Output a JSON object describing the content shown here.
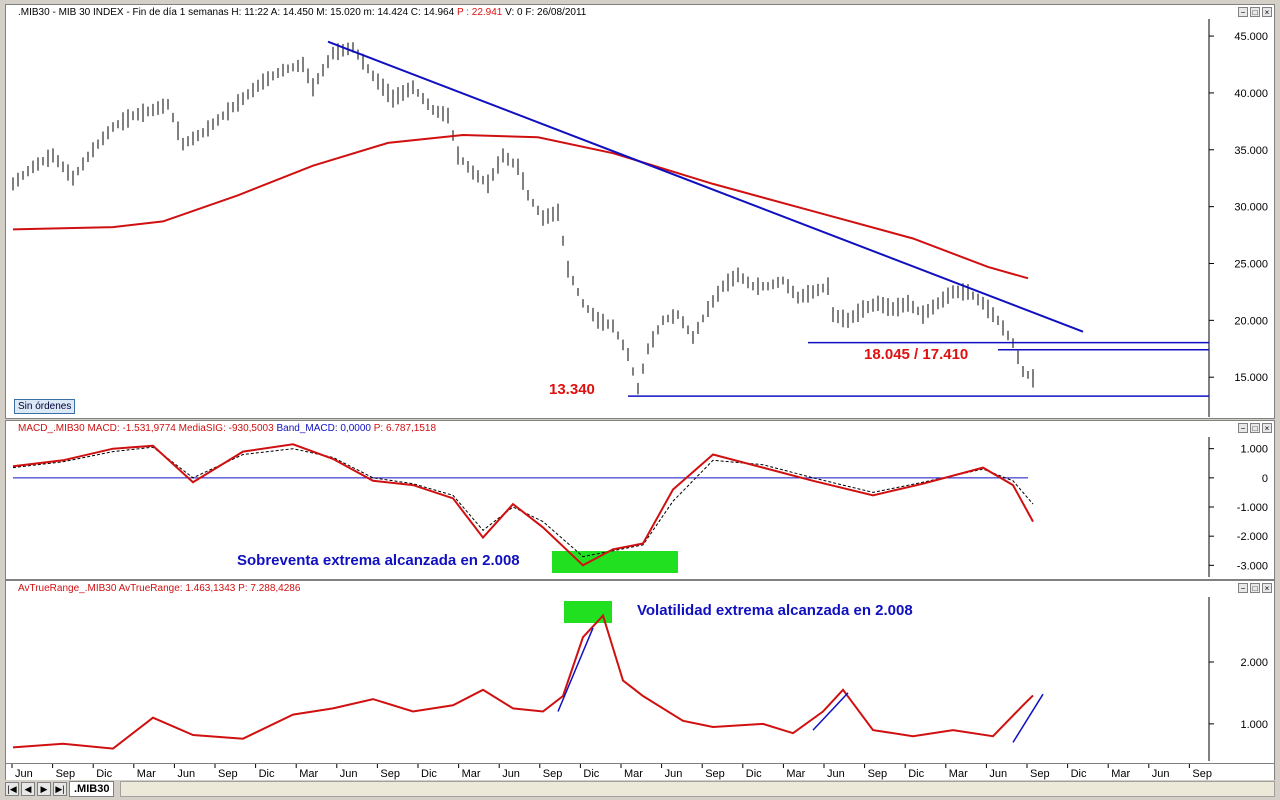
{
  "panes": {
    "price": {
      "title": ".MIB30 - MIB 30 INDEX - Fin de día 1 semanas  H: 11:22  A: 14.450  M: 15.020  m: 14.424  C: 14.964",
      "title_p": "P : 22.941",
      "title_rest": "V: 0  F: 26/08/2011",
      "orders_button": "Sin órdenes"
    },
    "macd": {
      "title": "MACD_.MIB30  MACD: -1.531,9774  MediaSIG: -930,5003",
      "title_band": "Band_MACD: 0,0000",
      "title_p": "P: 6.787,1518"
    },
    "atr": {
      "title": "AvTrueRange_.MIB30  AvTrueRange: 1.463,1343",
      "title_p": "P: 7.288,4286"
    }
  },
  "controls": [
    "−",
    "□",
    "×"
  ],
  "bottom": {
    "nav": [
      "|◀",
      "◀",
      "▶",
      "▶|"
    ],
    "tab": ".MIB30"
  },
  "colors": {
    "price": "#000000",
    "ma": "#d01010",
    "trend": "#1010c0",
    "macd": "#d01010",
    "signal": "#000000",
    "zero": "#1010c0",
    "highlight": "#20e020"
  },
  "chart_data": [
    {
      "type": "bar",
      "subtype": "ohlc",
      "yticks": [
        15000,
        20000,
        25000,
        30000,
        35000,
        40000,
        45000
      ],
      "ytick_labels": [
        "15.000",
        "20.000",
        "25.000",
        "30.000",
        "35.000",
        "40.000",
        "45.000"
      ],
      "ylim": [
        11500,
        46500
      ],
      "x_labels": [
        "Jun",
        "Sep",
        "Dic",
        "Mar",
        "Jun",
        "Sep",
        "Dic",
        "Mar",
        "Jun",
        "Sep",
        "Dic",
        "Mar",
        "Jun",
        "Sep",
        "Dic",
        "Mar",
        "Jun",
        "Sep",
        "Dic",
        "Mar",
        "Jun",
        "Sep",
        "Dic",
        "Mar",
        "Jun",
        "Sep",
        "Dic",
        "Mar",
        "Jun",
        "Sep"
      ],
      "price_path": [
        [
          0,
          32000
        ],
        [
          4,
          33500
        ],
        [
          8,
          34500
        ],
        [
          12,
          32500
        ],
        [
          16,
          35000
        ],
        [
          20,
          37000
        ],
        [
          24,
          38000
        ],
        [
          28,
          38500
        ],
        [
          31,
          39000
        ],
        [
          34,
          35500
        ],
        [
          38,
          36500
        ],
        [
          42,
          38000
        ],
        [
          46,
          39500
        ],
        [
          50,
          41000
        ],
        [
          54,
          42000
        ],
        [
          58,
          42500
        ],
        [
          60,
          40500
        ],
        [
          64,
          43500
        ],
        [
          68,
          44000
        ],
        [
          72,
          41500
        ],
        [
          76,
          39500
        ],
        [
          80,
          40500
        ],
        [
          84,
          38500
        ],
        [
          87,
          38000
        ],
        [
          89,
          34500
        ],
        [
          92,
          33000
        ],
        [
          95,
          32000
        ],
        [
          98,
          34500
        ],
        [
          101,
          33500
        ],
        [
          103,
          31000
        ],
        [
          106,
          29000
        ],
        [
          109,
          29500
        ],
        [
          111,
          24500
        ],
        [
          114,
          21500
        ],
        [
          117,
          20000
        ],
        [
          120,
          19500
        ],
        [
          123,
          17000
        ],
        [
          125,
          14000
        ],
        [
          127,
          17500
        ],
        [
          130,
          20000
        ],
        [
          133,
          20500
        ],
        [
          136,
          18500
        ],
        [
          139,
          21000
        ],
        [
          142,
          23000
        ],
        [
          145,
          24000
        ],
        [
          148,
          23000
        ],
        [
          151,
          23000
        ],
        [
          154,
          23500
        ],
        [
          157,
          22000
        ],
        [
          160,
          22500
        ],
        [
          163,
          23000
        ],
        [
          164,
          20500
        ],
        [
          167,
          20000
        ],
        [
          170,
          21000
        ],
        [
          173,
          21500
        ],
        [
          176,
          21000
        ],
        [
          179,
          21500
        ],
        [
          182,
          20500
        ],
        [
          185,
          21500
        ],
        [
          188,
          22500
        ],
        [
          191,
          22500
        ],
        [
          194,
          21500
        ],
        [
          197,
          20000
        ],
        [
          200,
          18000
        ],
        [
          202,
          15500
        ],
        [
          204,
          14900
        ]
      ],
      "moving_average": [
        [
          0,
          28000
        ],
        [
          20,
          28200
        ],
        [
          30,
          28700
        ],
        [
          45,
          31000
        ],
        [
          60,
          33600
        ],
        [
          75,
          35600
        ],
        [
          90,
          36300
        ],
        [
          105,
          36100
        ],
        [
          120,
          34700
        ],
        [
          140,
          32000
        ],
        [
          160,
          29600
        ],
        [
          180,
          27200
        ],
        [
          195,
          24700
        ],
        [
          203,
          23700
        ]
      ],
      "trendline": [
        [
          63,
          44500
        ],
        [
          214,
          19000
        ]
      ],
      "support_lines": [
        {
          "value": 18045,
          "label": "18.045 / 17.410"
        },
        {
          "value": 17410
        },
        {
          "value": 13340,
          "label": "13.340"
        }
      ],
      "annotations": [
        "13.340",
        "18.045 / 17.410"
      ]
    },
    {
      "type": "line",
      "series": [
        {
          "name": "MACD",
          "values": [
            [
              0,
              400
            ],
            [
              10,
              600
            ],
            [
              20,
              1000
            ],
            [
              28,
              1100
            ],
            [
              36,
              -150
            ],
            [
              46,
              900
            ],
            [
              56,
              1150
            ],
            [
              64,
              650
            ],
            [
              72,
              -100
            ],
            [
              80,
              -250
            ],
            [
              88,
              -700
            ],
            [
              94,
              -2050
            ],
            [
              100,
              -900
            ],
            [
              106,
              -1700
            ],
            [
              114,
              -3000
            ],
            [
              120,
              -2450
            ],
            [
              126,
              -2250
            ],
            [
              132,
              -400
            ],
            [
              140,
              800
            ],
            [
              150,
              350
            ],
            [
              160,
              -100
            ],
            [
              172,
              -600
            ],
            [
              182,
              -200
            ],
            [
              194,
              350
            ],
            [
              200,
              -250
            ],
            [
              204,
              -1500
            ]
          ]
        },
        {
          "name": "MediaSIG",
          "values": [
            [
              0,
              350
            ],
            [
              10,
              550
            ],
            [
              20,
              900
            ],
            [
              28,
              1050
            ],
            [
              36,
              0
            ],
            [
              46,
              800
            ],
            [
              56,
              1000
            ],
            [
              64,
              700
            ],
            [
              72,
              0
            ],
            [
              80,
              -200
            ],
            [
              88,
              -600
            ],
            [
              94,
              -1800
            ],
            [
              100,
              -1000
            ],
            [
              106,
              -1500
            ],
            [
              114,
              -2700
            ],
            [
              120,
              -2500
            ],
            [
              126,
              -2300
            ],
            [
              132,
              -800
            ],
            [
              140,
              600
            ],
            [
              150,
              450
            ],
            [
              160,
              0
            ],
            [
              172,
              -500
            ],
            [
              182,
              -150
            ],
            [
              194,
              300
            ],
            [
              200,
              -100
            ],
            [
              204,
              -900
            ]
          ]
        }
      ],
      "yticks": [
        1000,
        0,
        -1000,
        -2000,
        -3000
      ],
      "ytick_labels": [
        "1.000",
        "0",
        "-1.000",
        "-2.000",
        "-3.000"
      ],
      "ylim": [
        -3400,
        1400
      ],
      "annotation": "Sobreventa extrema alcanzada en 2.008"
    },
    {
      "type": "line",
      "series": [
        {
          "name": "AvTrueRange",
          "values": [
            [
              0,
              620
            ],
            [
              10,
              680
            ],
            [
              20,
              600
            ],
            [
              28,
              1100
            ],
            [
              36,
              820
            ],
            [
              46,
              760
            ],
            [
              56,
              1150
            ],
            [
              64,
              1250
            ],
            [
              72,
              1400
            ],
            [
              80,
              1200
            ],
            [
              88,
              1300
            ],
            [
              94,
              1550
            ],
            [
              100,
              1250
            ],
            [
              106,
              1200
            ],
            [
              110,
              1450
            ],
            [
              114,
              2400
            ],
            [
              118,
              2750
            ],
            [
              122,
              1700
            ],
            [
              126,
              1450
            ],
            [
              134,
              1050
            ],
            [
              140,
              950
            ],
            [
              150,
              1000
            ],
            [
              156,
              850
            ],
            [
              162,
              1200
            ],
            [
              166,
              1550
            ],
            [
              172,
              900
            ],
            [
              180,
              800
            ],
            [
              188,
              900
            ],
            [
              196,
              800
            ],
            [
              202,
              1300
            ],
            [
              204,
              1460
            ]
          ]
        }
      ],
      "yticks": [
        2000,
        1000
      ],
      "ytick_labels": [
        "2.000",
        "1.000"
      ],
      "ylim": [
        400,
        3050
      ],
      "annotation": "Volatilidad extrema alcanzada en 2.008"
    }
  ]
}
